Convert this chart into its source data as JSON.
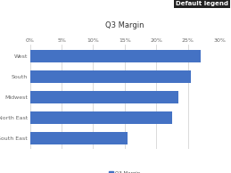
{
  "title": "Q3 Margin",
  "categories": [
    "West",
    "South",
    "Midwest",
    "North East",
    "South East"
  ],
  "values": [
    0.27,
    0.255,
    0.235,
    0.225,
    0.155
  ],
  "bar_color": "#4472C4",
  "legend_label": "Q3 Margin",
  "legend_box_color": "#222222",
  "legend_box_text_color": "#FFFFFF",
  "legend_title": "Default legend",
  "xlim": [
    0,
    0.3
  ],
  "xticks": [
    0,
    0.05,
    0.1,
    0.15,
    0.2,
    0.25,
    0.3
  ],
  "xtick_labels": [
    "0%",
    "5%",
    "10%",
    "15%",
    "20%",
    "25%",
    "30%"
  ],
  "title_fontsize": 6,
  "tick_fontsize": 4.5,
  "label_fontsize": 4.5,
  "background_color": "#FFFFFF",
  "grid_color": "#CCCCCC"
}
